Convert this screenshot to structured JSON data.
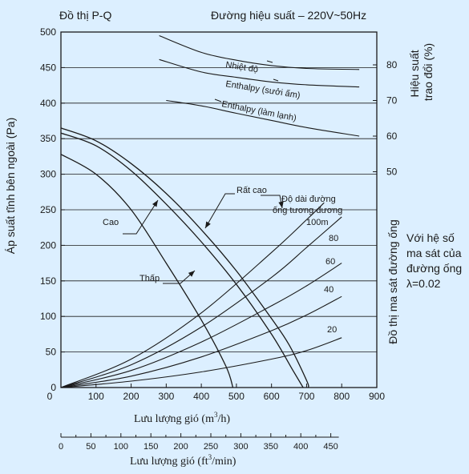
{
  "chart_data": {
    "type": "line",
    "title_left": "Đồ thị  P-Q",
    "title_right": "Đường hiệu suất – 220V~50Hz",
    "xlabel": "Lưu lượng gió (m3/h)",
    "xlabel_parts": [
      "Lưu lượng gió (m",
      "3",
      "/h)"
    ],
    "xlabel2": "Lưu lượng gió (ft3/min)",
    "xlabel2_parts": [
      "Lưu lượng gió (ft",
      "3",
      "/min)"
    ],
    "ylabel_left": "Áp suất tĩnh bên ngoài (Pa)",
    "ylabel_right_top_lines": [
      "Hiệu suất",
      "trao đổi (%)"
    ],
    "ylabel_right_bottom": "Đồ thị ma sát đường ống",
    "side_note_lines": [
      "Với hệ số",
      "ma sát của",
      "đường ống",
      "λ=0.02"
    ],
    "xlim": [
      0,
      900
    ],
    "ylim": [
      0,
      500
    ],
    "x_ticks": [
      0,
      100,
      200,
      300,
      400,
      500,
      600,
      700,
      800,
      900
    ],
    "y_ticks": [
      0,
      50,
      100,
      150,
      200,
      250,
      300,
      350,
      400,
      450,
      500
    ],
    "efficiency_ticks": [
      50,
      60,
      70,
      80
    ],
    "x2_ticks": [
      0,
      50,
      100,
      150,
      200,
      250,
      300,
      350,
      400,
      450
    ],
    "pq_curves": [
      {
        "name": "Thấp",
        "points": [
          [
            0,
            328
          ],
          [
            100,
            300
          ],
          [
            200,
            250
          ],
          [
            300,
            175
          ],
          [
            400,
            95
          ],
          [
            470,
            30
          ],
          [
            490,
            0
          ]
        ]
      },
      {
        "name": "Cao",
        "points": [
          [
            0,
            358
          ],
          [
            100,
            340
          ],
          [
            200,
            305
          ],
          [
            300,
            258
          ],
          [
            400,
            205
          ],
          [
            500,
            145
          ],
          [
            600,
            75
          ],
          [
            660,
            25
          ],
          [
            690,
            0
          ]
        ]
      },
      {
        "name": "Rất cao",
        "points": [
          [
            0,
            365
          ],
          [
            100,
            347
          ],
          [
            200,
            315
          ],
          [
            300,
            273
          ],
          [
            400,
            222
          ],
          [
            500,
            164
          ],
          [
            600,
            97
          ],
          [
            650,
            60
          ],
          [
            700,
            10
          ],
          [
            705,
            0
          ]
        ]
      }
    ],
    "duct_curves": [
      {
        "name": "100m",
        "points": [
          [
            0,
            0
          ],
          [
            200,
            40
          ],
          [
            400,
            105
          ],
          [
            600,
            190
          ],
          [
            700,
            236
          ],
          [
            750,
            260
          ]
        ]
      },
      {
        "name": "80",
        "points": [
          [
            0,
            0
          ],
          [
            200,
            32
          ],
          [
            400,
            85
          ],
          [
            600,
            155
          ],
          [
            700,
            197
          ],
          [
            800,
            240
          ]
        ]
      },
      {
        "name": "60",
        "points": [
          [
            0,
            0
          ],
          [
            200,
            24
          ],
          [
            400,
            64
          ],
          [
            600,
            115
          ],
          [
            700,
            143
          ],
          [
            800,
            175
          ]
        ]
      },
      {
        "name": "40",
        "points": [
          [
            0,
            0
          ],
          [
            200,
            16
          ],
          [
            400,
            43
          ],
          [
            600,
            80
          ],
          [
            700,
            102
          ],
          [
            800,
            128
          ]
        ]
      },
      {
        "name": "20",
        "points": [
          [
            0,
            0
          ],
          [
            200,
            9
          ],
          [
            400,
            22
          ],
          [
            600,
            40
          ],
          [
            700,
            52
          ],
          [
            800,
            70
          ]
        ]
      }
    ],
    "efficiency_curves": [
      {
        "name": "Nhiệt độ",
        "points": [
          [
            280,
            88.2
          ],
          [
            400,
            83.5
          ],
          [
            500,
            81.3
          ],
          [
            600,
            79.8
          ],
          [
            700,
            79.0
          ],
          [
            850,
            78.7
          ]
        ]
      },
      {
        "name": "Enthalpy (sưởi ấm)",
        "points": [
          [
            280,
            81.5
          ],
          [
            400,
            78.0
          ],
          [
            500,
            76.5
          ],
          [
            600,
            75.2
          ],
          [
            700,
            74.4
          ],
          [
            850,
            73.8
          ]
        ]
      },
      {
        "name": "Enthalpy (làm lạnh)",
        "points": [
          [
            300,
            70.0
          ],
          [
            400,
            68.5
          ],
          [
            500,
            66.4
          ],
          [
            600,
            64.4
          ],
          [
            700,
            62.4
          ],
          [
            850,
            60.0
          ]
        ]
      }
    ],
    "labels": {
      "cao": "Cao",
      "thap": "Thấp",
      "rat_cao": "Rất cao",
      "duct_length_lines": [
        "Độ dài đường",
        "ống tương đương"
      ],
      "nhiet_do": "Nhiệt độ",
      "enthalpy_heating": "Enthalpy (sưởi ấm)",
      "enthalpy_cooling": "Enthalpy (làm lạnh)",
      "duct_100": "100m",
      "duct_80": "80",
      "duct_60": "60",
      "duct_40": "40",
      "duct_20": "20"
    },
    "grid": "horizontal",
    "colors": {
      "background": "#dcefff",
      "line": "#1a1a1a"
    }
  }
}
